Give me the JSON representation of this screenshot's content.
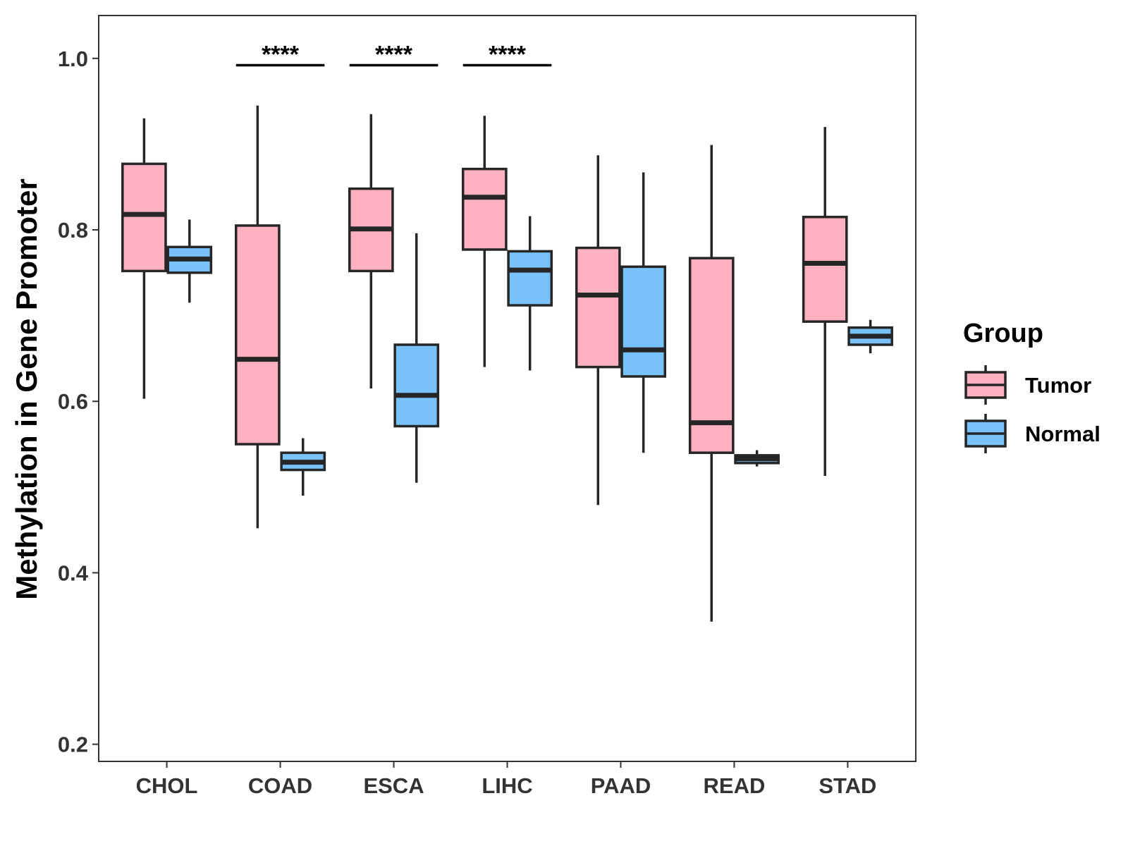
{
  "chart_data": {
    "type": "boxplot",
    "title": "",
    "xlabel": "",
    "ylabel": "Methylation in Gene Promoter",
    "ylim": [
      0.18,
      1.05
    ],
    "yticks": [
      0.2,
      0.4,
      0.6,
      0.8,
      1.0
    ],
    "ytick_labels": [
      "0.2",
      "0.4",
      "0.6",
      "0.8",
      "1.0"
    ],
    "categories": [
      "CHOL",
      "COAD",
      "ESCA",
      "LIHC",
      "PAAD",
      "READ",
      "STAD"
    ],
    "legend": {
      "title": "Group",
      "position": "right",
      "entries": [
        {
          "name": "Tumor",
          "color": "#FFB0C1"
        },
        {
          "name": "Normal",
          "color": "#78C1F9"
        }
      ]
    },
    "series": [
      {
        "name": "Tumor",
        "color": "#FFB0C1",
        "boxes": [
          {
            "category": "CHOL",
            "min": 0.603,
            "q1": 0.752,
            "median": 0.818,
            "q3": 0.877,
            "max": 0.93
          },
          {
            "category": "COAD",
            "min": 0.452,
            "q1": 0.55,
            "median": 0.649,
            "q3": 0.805,
            "max": 0.945
          },
          {
            "category": "ESCA",
            "min": 0.615,
            "q1": 0.752,
            "median": 0.801,
            "q3": 0.848,
            "max": 0.935
          },
          {
            "category": "LIHC",
            "min": 0.64,
            "q1": 0.777,
            "median": 0.838,
            "q3": 0.871,
            "max": 0.933
          },
          {
            "category": "PAAD",
            "min": 0.479,
            "q1": 0.64,
            "median": 0.724,
            "q3": 0.779,
            "max": 0.887
          },
          {
            "category": "READ",
            "min": 0.343,
            "q1": 0.54,
            "median": 0.575,
            "q3": 0.767,
            "max": 0.899
          },
          {
            "category": "STAD",
            "min": 0.513,
            "q1": 0.693,
            "median": 0.761,
            "q3": 0.815,
            "max": 0.92
          }
        ]
      },
      {
        "name": "Normal",
        "color": "#78C1F9",
        "boxes": [
          {
            "category": "CHOL",
            "min": 0.715,
            "q1": 0.75,
            "median": 0.766,
            "q3": 0.78,
            "max": 0.812
          },
          {
            "category": "COAD",
            "min": 0.49,
            "q1": 0.52,
            "median": 0.529,
            "q3": 0.54,
            "max": 0.557
          },
          {
            "category": "ESCA",
            "min": 0.505,
            "q1": 0.571,
            "median": 0.607,
            "q3": 0.666,
            "max": 0.796
          },
          {
            "category": "LIHC",
            "min": 0.636,
            "q1": 0.712,
            "median": 0.753,
            "q3": 0.775,
            "max": 0.816
          },
          {
            "category": "PAAD",
            "min": 0.54,
            "q1": 0.629,
            "median": 0.66,
            "q3": 0.757,
            "max": 0.867
          },
          {
            "category": "READ",
            "min": 0.524,
            "q1": 0.528,
            "median": 0.533,
            "q3": 0.537,
            "max": 0.543
          },
          {
            "category": "STAD",
            "min": 0.656,
            "q1": 0.666,
            "median": 0.676,
            "q3": 0.686,
            "max": 0.695
          }
        ]
      }
    ],
    "annotations": [
      {
        "category": "COAD",
        "label": "****",
        "y": 0.992
      },
      {
        "category": "ESCA",
        "label": "****",
        "y": 0.992
      },
      {
        "category": "LIHC",
        "label": "****",
        "y": 0.992
      }
    ],
    "grid": false
  }
}
